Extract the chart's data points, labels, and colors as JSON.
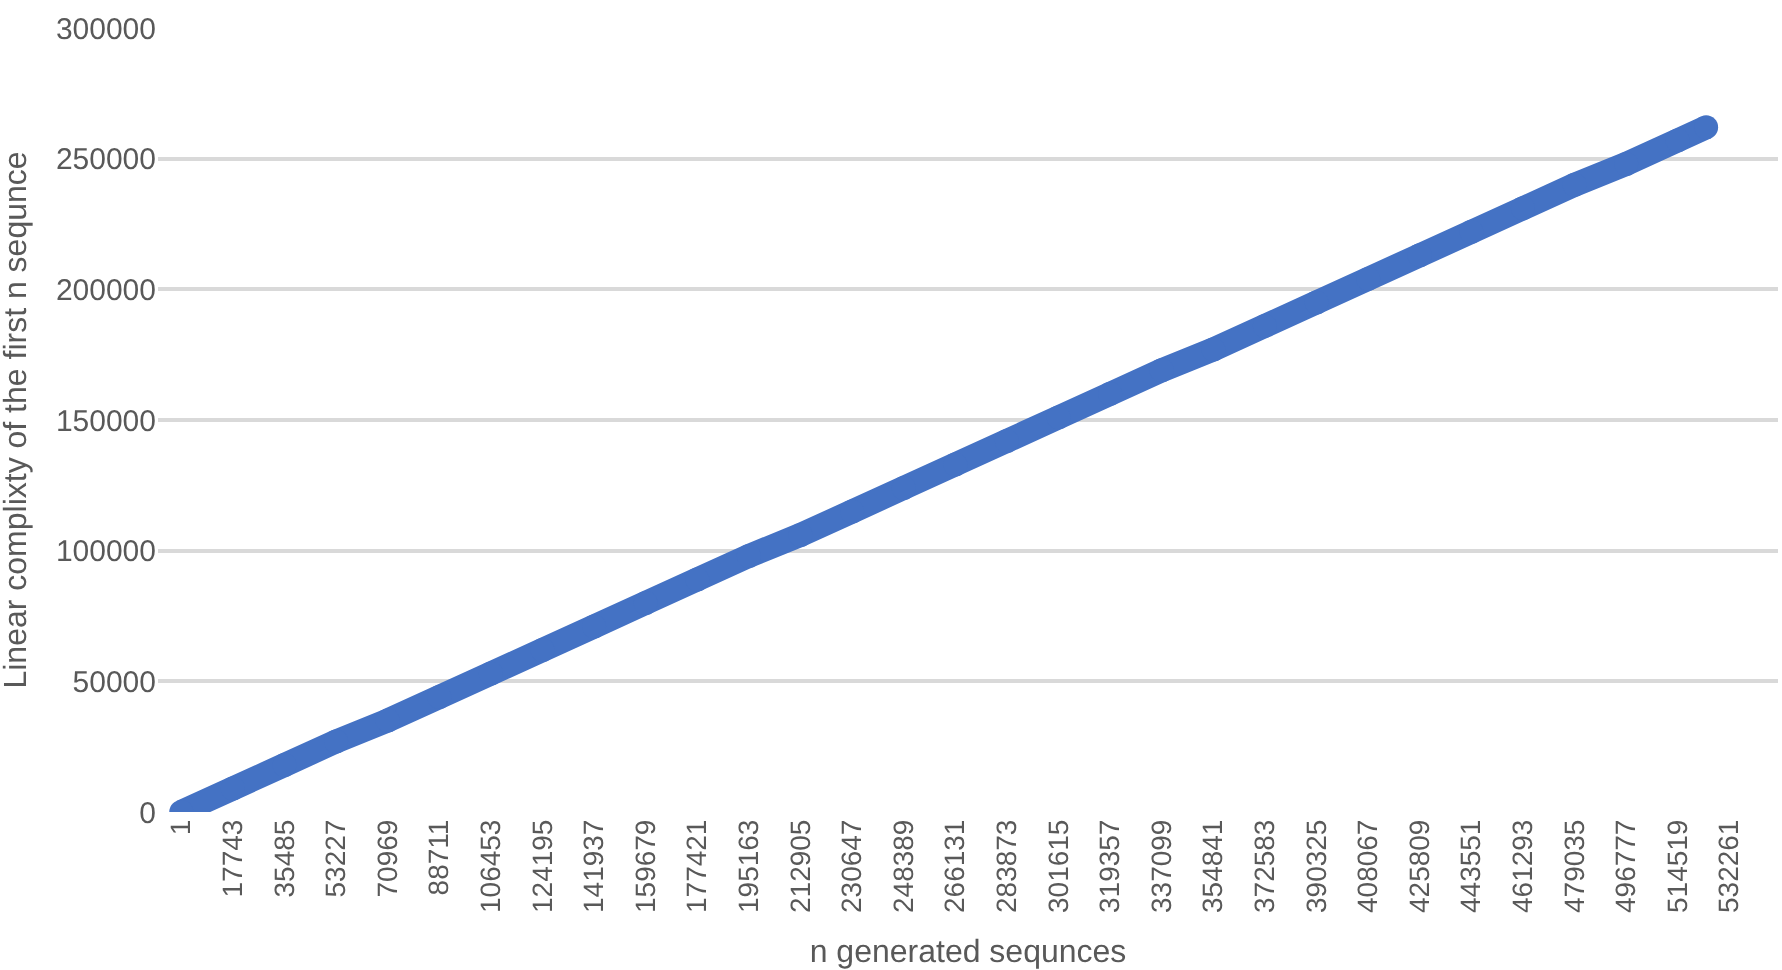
{
  "chart_data": {
    "type": "line",
    "xlabel": "n generated sequnces",
    "ylabel": "Linear complixty of the first n sequnce",
    "x": [
      1,
      17743,
      35485,
      53227,
      70969,
      88711,
      106453,
      124195,
      141937,
      159679,
      177421,
      195163,
      212905,
      230647,
      248389,
      266131,
      283873,
      301615,
      319357,
      337099,
      354841,
      372583,
      390325,
      408067,
      425809,
      443551,
      461293,
      479035,
      496777,
      514519,
      524288
    ],
    "series": [
      {
        "color": "#4472c4",
        "values": [
          0,
          9000,
          18000,
          27000,
          35000,
          44000,
          53000,
          62000,
          71000,
          80000,
          89000,
          98000,
          106000,
          115000,
          124000,
          133000,
          142000,
          151000,
          160000,
          169000,
          177000,
          186000,
          195000,
          204000,
          213000,
          222000,
          231000,
          240000,
          248000,
          257000,
          262000
        ]
      }
    ],
    "xlim": [
      -8000,
      549000
    ],
    "xticks": [
      1,
      17743,
      35485,
      53227,
      70969,
      88711,
      106453,
      124195,
      141937,
      159679,
      177421,
      195163,
      212905,
      230647,
      248389,
      266131,
      283873,
      301615,
      319357,
      337099,
      354841,
      372583,
      390325,
      408067,
      425809,
      443551,
      461293,
      479035,
      496777,
      514519,
      532261
    ],
    "ylim": [
      0,
      300000
    ],
    "yticks": [
      0,
      50000,
      100000,
      150000,
      200000,
      250000,
      300000
    ],
    "grid": "y",
    "marker": "circle",
    "line_style": "solid"
  }
}
